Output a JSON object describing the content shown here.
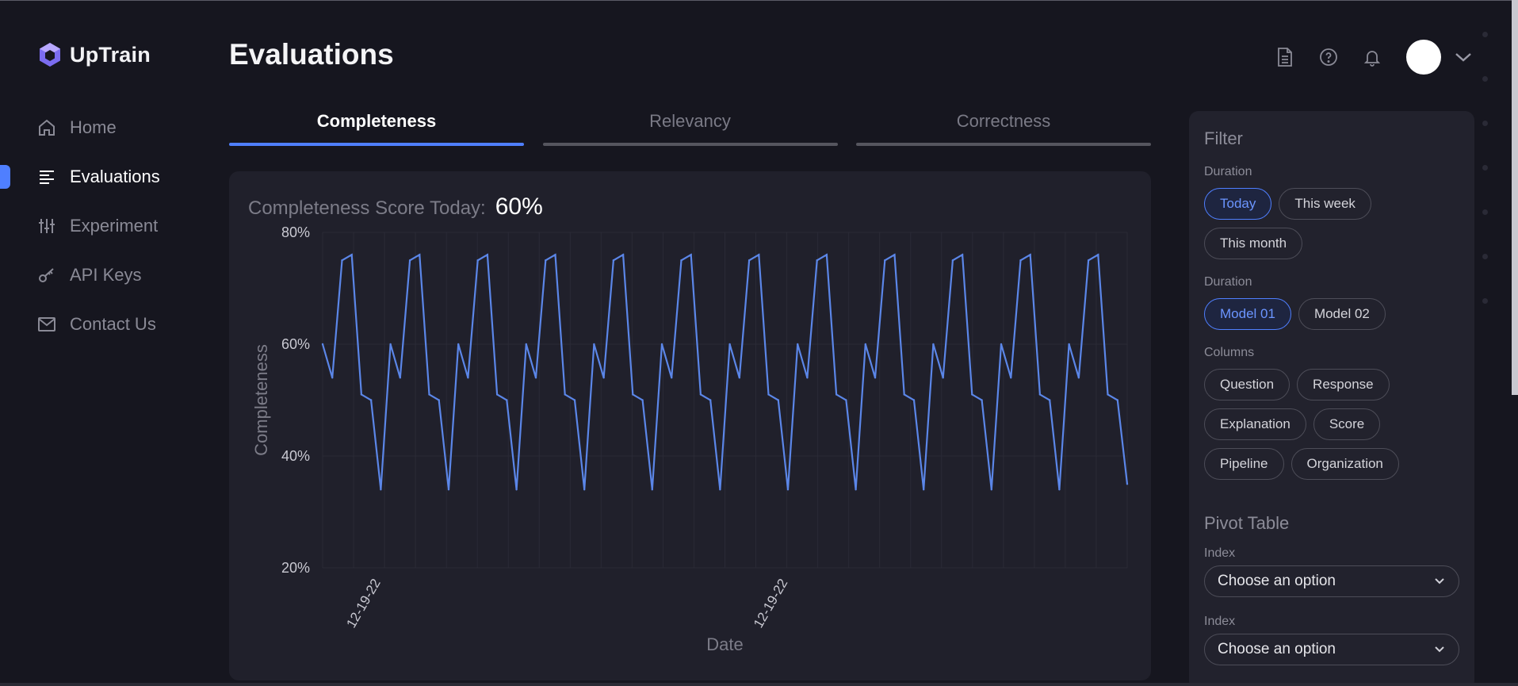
{
  "app": {
    "brand": "UpTrain"
  },
  "colors": {
    "accent": "#4f7fff",
    "background": "#16161f",
    "card": "#20202b",
    "line": "#5b86e8"
  },
  "sidebar": {
    "items": [
      {
        "label": "Home",
        "icon": "home-icon",
        "active": false
      },
      {
        "label": "Evaluations",
        "icon": "list-icon",
        "active": true
      },
      {
        "label": "Experiment",
        "icon": "sliders-icon",
        "active": false
      },
      {
        "label": "API Keys",
        "icon": "key-icon",
        "active": false
      },
      {
        "label": "Contact Us",
        "icon": "mail-icon",
        "active": false
      }
    ]
  },
  "header": {
    "title": "Evaluations",
    "icons": [
      "document-icon",
      "help-icon",
      "bell-icon",
      "avatar",
      "chevron-down-icon"
    ]
  },
  "tabs": [
    {
      "label": "Completeness",
      "active": true
    },
    {
      "label": "Relevancy",
      "active": false
    },
    {
      "label": "Correctness",
      "active": false
    }
  ],
  "score": {
    "label": "Completeness Score Today:",
    "value": "60%"
  },
  "chart_data": {
    "type": "line",
    "xlabel": "Date",
    "ylabel": "Completeness",
    "ylim": [
      20,
      80
    ],
    "y_ticks": [
      "80%",
      "60%",
      "40%",
      "20%"
    ],
    "x_tick_labels": [
      {
        "label": "12-19-22",
        "index": 6
      },
      {
        "label": "12-19-22",
        "index": 48
      }
    ],
    "grid": true,
    "series": [
      {
        "values": [
          60,
          54,
          75,
          76,
          51,
          50,
          34,
          60,
          54,
          75,
          76,
          51,
          50,
          34,
          60,
          54,
          75,
          76,
          51,
          50,
          34,
          60,
          54,
          75,
          76,
          51,
          50,
          34,
          60,
          54,
          75,
          76,
          51,
          50,
          34,
          60,
          54,
          75,
          76,
          51,
          50,
          34,
          60,
          54,
          75,
          76,
          51,
          50,
          34,
          60,
          54,
          75,
          76,
          51,
          50,
          34,
          60,
          54,
          75,
          76,
          51,
          50,
          34,
          60,
          54,
          75,
          76,
          51,
          50,
          34,
          60,
          54,
          75,
          76,
          51,
          50,
          34,
          60,
          54,
          75,
          76,
          51,
          50,
          35
        ]
      }
    ]
  },
  "filter": {
    "title": "Filter",
    "groups": [
      {
        "label": "Duration",
        "options": [
          "Today",
          "This week",
          "This month"
        ],
        "selected": "Today"
      },
      {
        "label": "Duration",
        "options": [
          "Model 01",
          "Model 02"
        ],
        "selected": "Model 01"
      },
      {
        "label": "Columns",
        "options": [
          "Question",
          "Response",
          "Explanation",
          "Score",
          "Pipeline",
          "Organization"
        ],
        "selected": ""
      }
    ],
    "pivot": {
      "title": "Pivot Table",
      "selects": [
        {
          "label": "Index",
          "value": "Choose an option"
        },
        {
          "label": "Index",
          "value": "Choose an option"
        }
      ]
    }
  }
}
